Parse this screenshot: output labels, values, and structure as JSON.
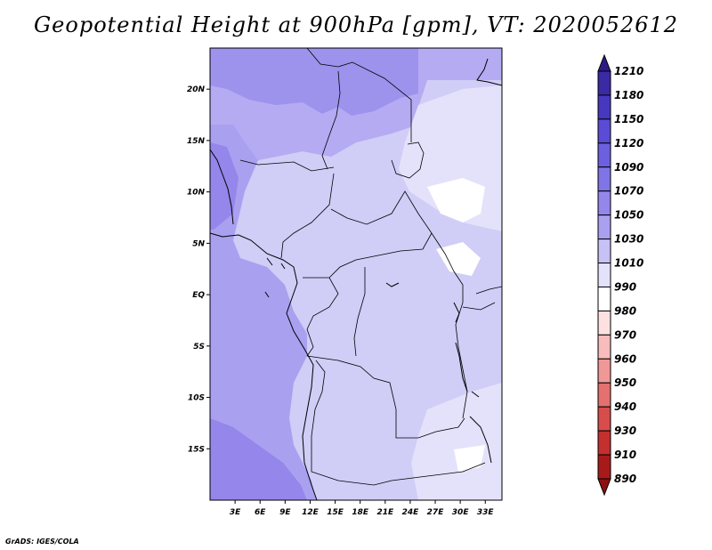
{
  "title": "Geopotential Height at 900hPa [gpm], VT: 2020052612",
  "credit": "GrADS: IGES/COLA",
  "map": {
    "lon_range": [
      0,
      35
    ],
    "lat_range": [
      -20,
      24
    ],
    "x_ticks": [
      "3E",
      "6E",
      "9E",
      "12E",
      "15E",
      "18E",
      "21E",
      "24E",
      "27E",
      "30E",
      "33E"
    ],
    "y_ticks": [
      "20N",
      "15N",
      "10N",
      "5N",
      "EQ",
      "5S",
      "10S",
      "15S"
    ]
  },
  "colorbar": {
    "levels": [
      "1210",
      "1180",
      "1150",
      "1120",
      "1090",
      "1070",
      "1050",
      "1030",
      "1010",
      "990",
      "980",
      "970",
      "960",
      "950",
      "940",
      "930",
      "910",
      "890"
    ],
    "colors": [
      "#2e1a87",
      "#3a2aa6",
      "#4838c0",
      "#5a4cd6",
      "#6c60e0",
      "#8074e6",
      "#9486ea",
      "#aaa0f0",
      "#c6c2f5",
      "#e4e2fb",
      "#ffffff",
      "#fde0e0",
      "#f8bcbc",
      "#f09898",
      "#e47070",
      "#d84c4c",
      "#c43030",
      "#a81a1a",
      "#8c1010"
    ]
  },
  "fill_colors": {
    "ocean": "#aaa0f0",
    "ocean_deep": "#9486ea",
    "land_main": "#d0cdf7",
    "land_light": "#e4e2fb",
    "north": "#b4abf3",
    "north_dark": "#9d92ec",
    "white": "#ffffff"
  }
}
